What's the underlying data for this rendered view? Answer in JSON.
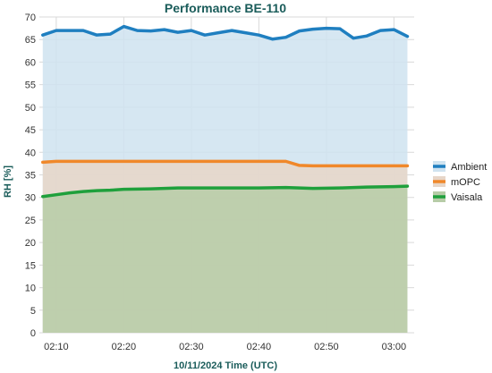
{
  "chart_data": {
    "type": "area",
    "title": "Performance BE-110",
    "xlabel": "10/11/2024 Time (UTC)",
    "ylabel": "RH [%]",
    "ylim": [
      0,
      70
    ],
    "yticks": [
      0,
      5,
      10,
      15,
      20,
      25,
      30,
      35,
      40,
      45,
      50,
      55,
      60,
      65,
      70
    ],
    "xlim": [
      "02:07:30",
      "03:03:00"
    ],
    "xticks": [
      "02:10",
      "02:20",
      "02:30",
      "02:40",
      "02:50",
      "03:00"
    ],
    "grid": true,
    "legend_position": "right",
    "series": [
      {
        "name": "Ambient",
        "color": "#1f7fc0",
        "fill": "#cfe3f0",
        "x": [
          "02:08",
          "02:10",
          "02:12",
          "02:14",
          "02:16",
          "02:18",
          "02:20",
          "02:22",
          "02:24",
          "02:26",
          "02:28",
          "02:30",
          "02:32",
          "02:34",
          "02:36",
          "02:38",
          "02:40",
          "02:42",
          "02:44",
          "02:46",
          "02:48",
          "02:50",
          "02:52",
          "02:54",
          "02:56",
          "02:58",
          "03:00",
          "03:02"
        ],
        "values": [
          66.0,
          67.0,
          67.0,
          67.0,
          66.0,
          66.2,
          67.9,
          67.0,
          66.9,
          67.2,
          66.6,
          67.0,
          66.0,
          66.5,
          67.0,
          66.5,
          66.0,
          65.1,
          65.5,
          66.9,
          67.3,
          67.5,
          67.4,
          65.3,
          65.8,
          67.0,
          67.2,
          65.7
        ]
      },
      {
        "name": "mOPC",
        "color": "#f0882a",
        "fill": "#e7d6c8",
        "x": [
          "02:08",
          "02:10",
          "02:20",
          "02:30",
          "02:40",
          "02:44",
          "02:46",
          "02:48",
          "02:50",
          "03:00",
          "03:02"
        ],
        "values": [
          37.8,
          38.0,
          38.0,
          38.0,
          38.0,
          38.0,
          37.1,
          37.0,
          37.0,
          37.0,
          37.0
        ]
      },
      {
        "name": "Vaisala",
        "color": "#1fa03c",
        "fill": "#b7cca7",
        "x": [
          "02:08",
          "02:10",
          "02:12",
          "02:14",
          "02:16",
          "02:18",
          "02:20",
          "02:24",
          "02:28",
          "02:32",
          "02:36",
          "02:40",
          "02:44",
          "02:48",
          "02:52",
          "02:56",
          "03:00",
          "03:02"
        ],
        "values": [
          30.2,
          30.6,
          31.0,
          31.3,
          31.5,
          31.6,
          31.8,
          31.9,
          32.1,
          32.1,
          32.1,
          32.1,
          32.2,
          32.0,
          32.1,
          32.3,
          32.4,
          32.5
        ]
      }
    ]
  }
}
